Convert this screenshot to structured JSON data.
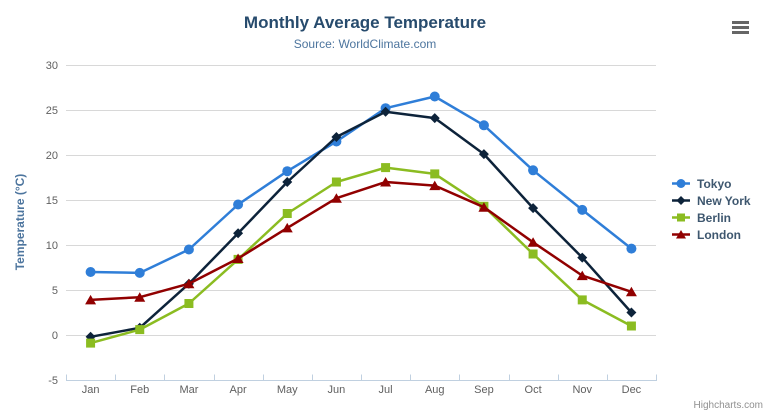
{
  "header": {
    "title": "Monthly Average Temperature",
    "subtitle": "Source: WorldClimate.com"
  },
  "icons": {
    "context_menu": "hamburger-icon"
  },
  "credits": {
    "text": "Highcharts.com"
  },
  "colors": {
    "title": "#274b6d",
    "subtitle": "#4d759e",
    "axis_label": "#606060",
    "axis_title": "#4d759e",
    "legend_text": "#3e576f",
    "grid": "#d8d8d8",
    "axis_line": "#c0d0e0",
    "menu_icon": "#666666",
    "credits": "#909090",
    "background": "#ffffff"
  },
  "chart_data": {
    "type": "line",
    "title": "Monthly Average Temperature",
    "subtitle": "Source: WorldClimate.com",
    "xlabel": "",
    "ylabel": "Temperature (°C)",
    "ylim": [
      -5,
      30
    ],
    "ytick_step": 5,
    "yticks": [
      -5,
      0,
      5,
      10,
      15,
      20,
      25,
      30
    ],
    "grid": true,
    "legend_position": "right",
    "categories": [
      "Jan",
      "Feb",
      "Mar",
      "Apr",
      "May",
      "Jun",
      "Jul",
      "Aug",
      "Sep",
      "Oct",
      "Nov",
      "Dec"
    ],
    "series": [
      {
        "name": "Tokyo",
        "color": "#2f7ed8",
        "marker": "circle",
        "values": [
          7.0,
          6.9,
          9.5,
          14.5,
          18.2,
          21.5,
          25.2,
          26.5,
          23.3,
          18.3,
          13.9,
          9.6
        ]
      },
      {
        "name": "New York",
        "color": "#0d233a",
        "marker": "diamond",
        "values": [
          -0.2,
          0.8,
          5.7,
          11.3,
          17.0,
          22.0,
          24.8,
          24.1,
          20.1,
          14.1,
          8.6,
          2.5
        ]
      },
      {
        "name": "Berlin",
        "color": "#8bbc21",
        "marker": "square",
        "values": [
          -0.9,
          0.6,
          3.5,
          8.4,
          13.5,
          17.0,
          18.6,
          17.9,
          14.3,
          9.0,
          3.9,
          1.0
        ]
      },
      {
        "name": "London",
        "color": "#910000",
        "marker": "triangle",
        "values": [
          3.9,
          4.2,
          5.7,
          8.5,
          11.9,
          15.2,
          17.0,
          16.6,
          14.2,
          10.3,
          6.6,
          4.8
        ]
      }
    ]
  }
}
